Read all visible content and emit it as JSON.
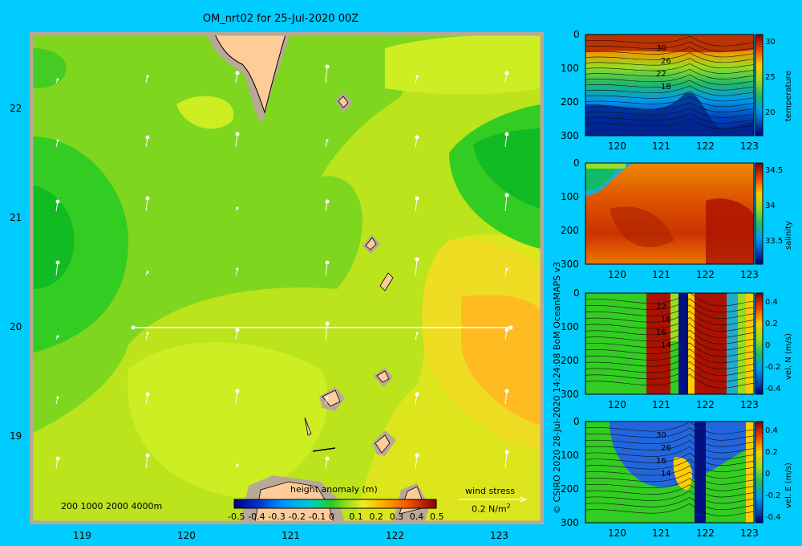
{
  "title": "OM_nrt02 for 25-Jul-2020 00Z",
  "credit": "© CSIRO 2020   28-Jul-2020 14:24:08 BoM OceanMAPS v3",
  "map": {
    "x_ticks": [
      "119",
      "120",
      "121",
      "122",
      "123"
    ],
    "y_ticks": [
      "22",
      "21",
      "20",
      "19"
    ],
    "depth_legend": "200  1000  2000  4000m",
    "colorbar_label": "height anomaly (m)",
    "colorbar_ticks": [
      "-0.5",
      "-0.4",
      "-0.3",
      "-0.2",
      "-0.1",
      "0",
      "0.1",
      "0.2",
      "0.3",
      "0.4",
      "0.5"
    ],
    "wind_label": "wind stress",
    "wind_scale": "0.2 N/m",
    "wind_scale_sup": "2"
  },
  "chart_data": [
    {
      "type": "heatmap",
      "title": "OM_nrt02 for 25-Jul-2020 00Z",
      "xlim": [
        118.5,
        123.5
      ],
      "ylim": [
        18.3,
        22.7
      ],
      "colorbar": {
        "label": "height anomaly (m)",
        "range": [
          -0.5,
          0.5
        ]
      },
      "section_line": {
        "lon": [
          119.5,
          123.2
        ],
        "lat": [
          20.0,
          20.0
        ]
      },
      "anomaly_centers": [
        {
          "lon": 118.7,
          "lat": 21.0,
          "value": -0.05
        },
        {
          "lon": 123.1,
          "lat": 21.5,
          "value": -0.05
        },
        {
          "lon": 123.0,
          "lat": 20.0,
          "value": 0.25
        },
        {
          "lon": 120.0,
          "lat": 19.7,
          "value": 0.12
        },
        {
          "lon": 122.6,
          "lat": 22.3,
          "value": 0.15
        }
      ]
    },
    {
      "type": "heatmap",
      "ylabel": "temperature",
      "xlim": [
        119.5,
        123.3
      ],
      "ylim": [
        300,
        0
      ],
      "x_ticks": [
        "120",
        "121",
        "122",
        "123"
      ],
      "y_ticks": [
        "0",
        "100",
        "200",
        "300"
      ],
      "colorbar_ticks": [
        "30",
        "25",
        "20"
      ],
      "contour_labels": [
        "30",
        "26",
        "22",
        "18"
      ]
    },
    {
      "type": "heatmap",
      "ylabel": "salinity",
      "xlim": [
        119.5,
        123.3
      ],
      "ylim": [
        300,
        0
      ],
      "x_ticks": [
        "120",
        "121",
        "122",
        "123"
      ],
      "y_ticks": [
        "0",
        "100",
        "200",
        "300"
      ],
      "colorbar_ticks": [
        "34.5",
        "34",
        "33.5"
      ]
    },
    {
      "type": "heatmap",
      "ylabel": "vel. N  (m/s)",
      "xlim": [
        119.5,
        123.3
      ],
      "ylim": [
        300,
        0
      ],
      "x_ticks": [
        "120",
        "121",
        "122",
        "123"
      ],
      "y_ticks": [
        "0",
        "100",
        "200",
        "300"
      ],
      "colorbar_ticks": [
        "0.4",
        "0.2",
        "0",
        "-0.2",
        "-0.4"
      ],
      "contour_labels": [
        "22",
        "18",
        "16",
        "14"
      ]
    },
    {
      "type": "heatmap",
      "ylabel": "vel. E  (m/s)",
      "xlim": [
        119.5,
        123.3
      ],
      "ylim": [
        300,
        0
      ],
      "x_ticks": [
        "120",
        "121",
        "122",
        "123"
      ],
      "y_ticks": [
        "0",
        "100",
        "200",
        "300"
      ],
      "colorbar_ticks": [
        "0.4",
        "0.2",
        "0",
        "-0.2",
        "-0.4"
      ],
      "contour_labels": [
        "30",
        "26",
        "16",
        "14"
      ]
    }
  ]
}
